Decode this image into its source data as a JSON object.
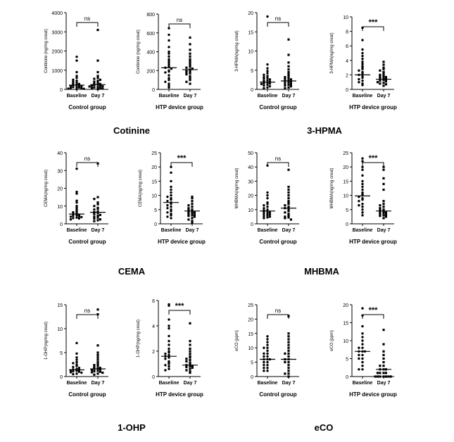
{
  "marker_labels": [
    "Cotinine",
    "3-HPMA",
    "CEMA",
    "MHBMA",
    "1-OHP",
    "eCO"
  ],
  "chart_data": [
    {
      "type": "scatter",
      "ylabel": "Continine (ng/mg creat)",
      "ylim": [
        0,
        4000
      ],
      "yticks": [
        0,
        1000,
        2000,
        3000,
        4000
      ],
      "categories": [
        "Baseline",
        "Day 7"
      ],
      "group": "Control group",
      "significance": "ns",
      "series": [
        {
          "values": [
            1700,
            1500,
            900,
            700,
            600,
            500,
            450,
            400,
            350,
            300,
            280,
            250,
            230,
            200,
            180,
            150,
            130,
            120,
            100,
            80,
            60,
            40,
            30,
            20
          ],
          "median": 220
        },
        {
          "values": [
            3100,
            1500,
            900,
            700,
            600,
            550,
            500,
            450,
            400,
            350,
            300,
            280,
            250,
            230,
            200,
            180,
            160,
            150,
            120,
            100,
            80,
            60,
            40,
            20
          ],
          "median": 250
        }
      ]
    },
    {
      "type": "scatter",
      "ylabel": "Continine (ng/mg creat)",
      "ylim": [
        0,
        800
      ],
      "yticks": [
        0,
        200,
        400,
        600,
        800
      ],
      "categories": [
        "Baseline",
        "Day 7"
      ],
      "group": "HTP device group",
      "significance": "ns",
      "series": [
        {
          "values": [
            650,
            580,
            520,
            450,
            400,
            380,
            350,
            320,
            300,
            280,
            260,
            240,
            230,
            220,
            200,
            190,
            180,
            150,
            120,
            100,
            80,
            60,
            40,
            20
          ],
          "median": 230
        },
        {
          "values": [
            550,
            480,
            420,
            380,
            350,
            320,
            300,
            280,
            260,
            240,
            230,
            220,
            210,
            200,
            190,
            180,
            170,
            160,
            140,
            120,
            100,
            80,
            60
          ],
          "median": 210
        }
      ]
    },
    {
      "type": "scatter",
      "ylabel": "3-HPMA(ng/mg creat)",
      "ylim": [
        0,
        20
      ],
      "yticks": [
        0,
        5,
        10,
        15,
        20
      ],
      "categories": [
        "Baseline",
        "Day 7"
      ],
      "group": "Control group",
      "significance": "ns",
      "series": [
        {
          "values": [
            19,
            6.5,
            5.5,
            4.8,
            4.2,
            3.8,
            3.5,
            3.2,
            3,
            2.8,
            2.6,
            2.4,
            2.2,
            2,
            1.8,
            1.6,
            1.5,
            1.4,
            1.2,
            1,
            0.8,
            0.5,
            0.3
          ],
          "median": 1.9
        },
        {
          "values": [
            13,
            9,
            7,
            6,
            5.2,
            4.5,
            4,
            3.6,
            3.2,
            3,
            2.8,
            2.6,
            2.4,
            2.2,
            2,
            1.8,
            1.6,
            1.4,
            1.2,
            1,
            0.8,
            0.5,
            0.3
          ],
          "median": 2.2
        }
      ]
    },
    {
      "type": "scatter",
      "ylabel": "3-HPMA(ng/mg creat)",
      "ylim": [
        0,
        10
      ],
      "yticks": [
        0,
        2,
        4,
        6,
        8,
        10
      ],
      "categories": [
        "Baseline",
        "Day 7"
      ],
      "group": "HTP device group",
      "significance": "***",
      "series": [
        {
          "values": [
            8.5,
            6.8,
            5.5,
            5,
            4.6,
            4.2,
            3.8,
            3.5,
            3.2,
            3,
            2.8,
            2.6,
            2.4,
            2.2,
            2,
            1.8,
            1.6,
            1.4,
            1.2,
            1,
            0.8,
            0.6
          ],
          "median": 2.0
        },
        {
          "values": [
            3.8,
            3.4,
            3,
            2.8,
            2.6,
            2.4,
            2.2,
            2,
            1.9,
            1.8,
            1.7,
            1.6,
            1.5,
            1.4,
            1.3,
            1.2,
            1.1,
            1,
            0.9,
            0.8,
            0.7,
            0.5
          ],
          "median": 1.4
        }
      ]
    },
    {
      "type": "scatter",
      "ylabel": "CEMA(ng/mg creat)",
      "ylim": [
        0,
        40
      ],
      "yticks": [
        0,
        10,
        20,
        30,
        40
      ],
      "categories": [
        "Baseline",
        "Day 7"
      ],
      "group": "Control group",
      "significance": "ns",
      "series": [
        {
          "values": [
            31,
            18,
            17,
            13,
            12,
            10,
            9,
            8,
            7,
            6.5,
            6,
            5.5,
            5,
            4.8,
            4.5,
            4.2,
            4,
            3.8,
            3.5,
            3.2,
            3,
            2.5
          ],
          "median": 5.5
        },
        {
          "values": [
            34,
            15,
            14,
            12,
            11,
            10,
            9,
            8.5,
            8,
            7,
            6.5,
            6,
            5.5,
            5,
            4.5,
            4,
            3.5,
            3,
            2.5,
            2,
            1.5
          ],
          "median": 6.5
        }
      ]
    },
    {
      "type": "scatter",
      "ylabel": "CEMA(ng/mg creat)",
      "ylim": [
        0,
        25
      ],
      "yticks": [
        0,
        5,
        10,
        15,
        20,
        25
      ],
      "categories": [
        "Baseline",
        "Day 7"
      ],
      "group": "HTP device group",
      "significance": "***",
      "series": [
        {
          "values": [
            20,
            18,
            15,
            13,
            12,
            11,
            10,
            9.5,
            9,
            8.5,
            8,
            7.5,
            7,
            6.5,
            6,
            5.5,
            5,
            4.5,
            4,
            3.5,
            3,
            2.5,
            2
          ],
          "median": 7.5
        },
        {
          "values": [
            9.5,
            9,
            8,
            7,
            6.5,
            6,
            5.5,
            5,
            4.8,
            4.5,
            4.2,
            4,
            3.8,
            3.5,
            3.2,
            3,
            2.8,
            2.5,
            2,
            1.5,
            1,
            0.5
          ],
          "median": 4.5
        }
      ]
    },
    {
      "type": "scatter",
      "ylabel": "MHBMA(ng/mg creat)",
      "ylim": [
        0,
        50
      ],
      "yticks": [
        0,
        10,
        20,
        30,
        40,
        50
      ],
      "categories": [
        "Baseline",
        "Day 7"
      ],
      "group": "Control group",
      "significance": "ns",
      "series": [
        {
          "values": [
            41,
            22,
            20,
            18,
            15,
            14,
            13,
            12,
            11,
            10,
            9.5,
            9,
            8.5,
            8,
            7.5,
            7,
            6.5,
            6,
            5.5,
            5,
            4.5,
            4
          ],
          "median": 9
        },
        {
          "values": [
            38,
            26,
            24,
            22,
            20,
            18,
            16,
            15,
            14,
            13,
            12,
            11,
            10,
            9,
            8,
            7,
            6,
            5,
            4.5,
            4,
            3
          ],
          "median": 11
        }
      ]
    },
    {
      "type": "scatter",
      "ylabel": "MHBMA(ng/mg creat)",
      "ylim": [
        0,
        25
      ],
      "yticks": [
        0,
        5,
        10,
        15,
        20,
        25
      ],
      "categories": [
        "Baseline",
        "Day 7"
      ],
      "group": "HTP device group",
      "significance": "***",
      "series": [
        {
          "values": [
            23,
            22,
            20,
            19,
            17,
            15,
            14,
            13,
            12,
            11,
            10.5,
            10,
            9.5,
            9,
            8.5,
            8,
            7,
            6.5,
            6,
            5,
            4,
            3
          ],
          "median": 9.8
        },
        {
          "values": [
            20,
            19,
            16,
            14,
            12,
            8,
            7,
            6.5,
            6,
            5.5,
            5,
            4.8,
            4.5,
            4.2,
            4,
            3.8,
            3.5,
            3.2,
            3,
            2.8,
            2.5,
            2
          ],
          "median": 4.5
        }
      ]
    },
    {
      "type": "scatter",
      "ylabel": "1-OHP(ng/mg creat)",
      "ylim": [
        0,
        15
      ],
      "yticks": [
        0,
        5,
        10,
        15
      ],
      "categories": [
        "Baseline",
        "Day 7"
      ],
      "group": "Control group",
      "significance": "ns",
      "series": [
        {
          "values": [
            7,
            4.8,
            4,
            3.5,
            3,
            2.8,
            2.5,
            2.2,
            2,
            1.8,
            1.6,
            1.5,
            1.4,
            1.3,
            1.2,
            1.1,
            1,
            0.9,
            0.8,
            0.6,
            0.5
          ],
          "median": 1.4
        },
        {
          "values": [
            14,
            13,
            6.5,
            5,
            4.5,
            4,
            3.5,
            3,
            2.6,
            2.4,
            2.2,
            2,
            1.8,
            1.7,
            1.6,
            1.5,
            1.4,
            1.2,
            1.1,
            1,
            0.9,
            0.8,
            0.6,
            0.4
          ],
          "median": 1.6
        }
      ]
    },
    {
      "type": "scatter",
      "ylabel": "1-OHP(ng/mg creat)",
      "ylim": [
        0,
        6
      ],
      "yticks": [
        0,
        2,
        4,
        6
      ],
      "categories": [
        "Baseline",
        "Day 7"
      ],
      "group": "HTP device group",
      "significance": "***",
      "series": [
        {
          "values": [
            5.7,
            5.6,
            4.5,
            4,
            3.8,
            3.2,
            2.8,
            2.5,
            2.2,
            2,
            1.9,
            1.8,
            1.7,
            1.6,
            1.5,
            1.4,
            1.2,
            1.1,
            1,
            0.9,
            0.8,
            0.6,
            0.5
          ],
          "median": 1.6
        },
        {
          "values": [
            4.2,
            2.8,
            2.5,
            2.2,
            2,
            1.8,
            1.6,
            1.5,
            1.4,
            1.3,
            1.2,
            1.1,
            1,
            0.9,
            0.85,
            0.8,
            0.75,
            0.7,
            0.6,
            0.5,
            0.4,
            0.3
          ],
          "median": 0.9
        }
      ]
    },
    {
      "type": "scatter",
      "ylabel": "eCO (ppm)",
      "ylim": [
        0,
        25
      ],
      "yticks": [
        0,
        5,
        10,
        15,
        20,
        25
      ],
      "categories": [
        "Baseline",
        "Day 7"
      ],
      "group": "Control group",
      "significance": "ns",
      "series": [
        {
          "values": [
            14,
            13,
            12,
            11,
            10,
            10,
            9,
            8,
            8,
            7,
            7,
            6,
            6,
            6,
            5,
            5,
            4,
            4,
            3,
            3,
            2,
            2
          ],
          "median": 6
        },
        {
          "values": [
            21,
            15,
            14,
            13,
            12,
            11,
            10,
            9,
            8,
            8,
            7,
            6,
            6,
            5,
            5,
            4,
            3,
            2,
            1,
            1,
            0
          ],
          "median": 6
        }
      ]
    },
    {
      "type": "scatter",
      "ylabel": "eCO (ppm)",
      "ylim": [
        0,
        20
      ],
      "yticks": [
        0,
        5,
        10,
        15,
        20
      ],
      "categories": [
        "Baseline",
        "Day 7"
      ],
      "group": "HTP device group",
      "significance": "***",
      "series": [
        {
          "values": [
            19,
            17,
            14,
            12,
            11,
            10,
            9,
            8,
            8,
            7,
            7,
            7,
            6,
            6,
            5,
            5,
            4,
            3,
            2,
            2
          ],
          "median": 7
        },
        {
          "values": [
            13,
            9,
            7,
            6,
            5,
            4,
            3,
            3,
            2,
            2,
            2,
            1,
            1,
            1,
            1,
            0,
            0,
            0,
            0,
            0,
            0,
            0
          ],
          "median": 2
        }
      ]
    }
  ]
}
